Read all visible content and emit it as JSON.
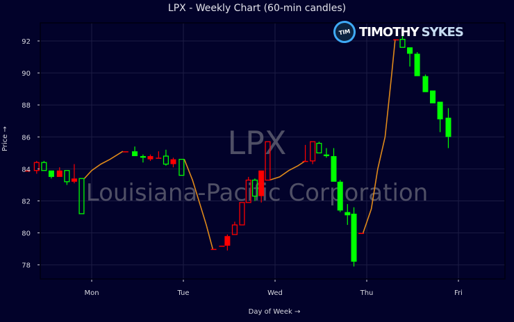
{
  "header": {
    "title": "LPX - Weekly Chart (60-min candles)"
  },
  "axes": {
    "ylabel": "Price →",
    "xlabel": "Day of Week →"
  },
  "watermark": {
    "ticker": "LPX",
    "company": "Louisiana-Pacific Corporation"
  },
  "logo": {
    "badge": "TIM",
    "name_primary": "TIMOTHY",
    "name_secondary": "SYKES"
  },
  "colors": {
    "background": "#02022a",
    "up": "#00ff00",
    "down": "#ff0000",
    "line": "#e08a1a",
    "grid": "#1c1c44"
  },
  "chart_data": {
    "type": "candlestick",
    "title": "LPX - Weekly Chart (60-min candles)",
    "xlabel": "Day of Week →",
    "ylabel": "Price →",
    "x_ticks": [
      "Mon",
      "Tue",
      "Wed",
      "Thu",
      "Fri"
    ],
    "y_ticks": [
      78,
      80,
      82,
      84,
      86,
      88,
      90,
      92
    ],
    "ylim": [
      77.3,
      93.1
    ],
    "grid": true,
    "legend": null,
    "candles": [
      {
        "x": 0.3,
        "open": 83.9,
        "high": 83.9,
        "low": 83.9,
        "close": 83.9,
        "color": "down",
        "filled": true
      },
      {
        "x": 0.4,
        "open": 84.4,
        "high": 84.5,
        "low": 83.7,
        "close": 83.9,
        "color": "down",
        "filled": false
      },
      {
        "x": 0.48,
        "open": 83.9,
        "high": 84.5,
        "low": 83.9,
        "close": 84.4,
        "color": "up",
        "filled": false
      },
      {
        "x": 0.56,
        "open": 83.9,
        "high": 83.9,
        "low": 83.4,
        "close": 83.5,
        "color": "up",
        "filled": true
      },
      {
        "x": 0.65,
        "open": 83.9,
        "high": 84.1,
        "low": 83.5,
        "close": 83.5,
        "color": "down",
        "filled": true
      },
      {
        "x": 0.73,
        "open": 83.2,
        "high": 83.9,
        "low": 83.0,
        "close": 83.9,
        "color": "up",
        "filled": false
      },
      {
        "x": 0.81,
        "open": 83.4,
        "high": 84.3,
        "low": 83.1,
        "close": 83.2,
        "color": "down",
        "filled": true
      },
      {
        "x": 0.89,
        "open": 81.2,
        "high": 83.4,
        "low": 81.2,
        "close": 83.4,
        "color": "up",
        "filled": false
      },
      {
        "x": 1.37,
        "open": 85.1,
        "high": 85.1,
        "low": 85.1,
        "close": 85.1,
        "color": "down",
        "filled": true
      },
      {
        "x": 1.47,
        "open": 85.1,
        "high": 85.4,
        "low": 84.8,
        "close": 84.8,
        "color": "up",
        "filled": true
      },
      {
        "x": 1.56,
        "open": 84.8,
        "high": 84.9,
        "low": 84.4,
        "close": 84.7,
        "color": "up",
        "filled": true
      },
      {
        "x": 1.64,
        "open": 84.8,
        "high": 84.9,
        "low": 84.5,
        "close": 84.6,
        "color": "down",
        "filled": true
      },
      {
        "x": 1.73,
        "open": 84.7,
        "high": 85.1,
        "low": 84.7,
        "close": 84.7,
        "color": "down",
        "filled": true
      },
      {
        "x": 1.81,
        "open": 84.3,
        "high": 85.2,
        "low": 84.2,
        "close": 84.8,
        "color": "up",
        "filled": false
      },
      {
        "x": 1.89,
        "open": 84.6,
        "high": 84.7,
        "low": 84.1,
        "close": 84.3,
        "color": "down",
        "filled": true
      },
      {
        "x": 1.98,
        "open": 83.6,
        "high": 84.6,
        "low": 83.6,
        "close": 84.6,
        "color": "up",
        "filled": false
      },
      {
        "x": 2.33,
        "open": 79.0,
        "high": 79.0,
        "low": 79.0,
        "close": 79.0,
        "color": "down",
        "filled": true
      },
      {
        "x": 2.42,
        "open": 79.2,
        "high": 79.2,
        "low": 79.2,
        "close": 79.2,
        "color": "down",
        "filled": true
      },
      {
        "x": 2.48,
        "open": 79.8,
        "high": 79.9,
        "low": 78.9,
        "close": 79.2,
        "color": "down",
        "filled": true
      },
      {
        "x": 2.56,
        "open": 80.5,
        "high": 80.7,
        "low": 79.9,
        "close": 79.9,
        "color": "down",
        "filled": false
      },
      {
        "x": 2.64,
        "open": 81.9,
        "high": 81.9,
        "low": 80.5,
        "close": 80.5,
        "color": "down",
        "filled": false
      },
      {
        "x": 2.71,
        "open": 83.3,
        "high": 83.5,
        "low": 81.9,
        "close": 81.9,
        "color": "down",
        "filled": false
      },
      {
        "x": 2.78,
        "open": 82.3,
        "high": 83.4,
        "low": 82.0,
        "close": 83.3,
        "color": "up",
        "filled": false
      },
      {
        "x": 2.85,
        "open": 83.9,
        "high": 83.9,
        "low": 81.9,
        "close": 82.3,
        "color": "down",
        "filled": true
      },
      {
        "x": 2.92,
        "open": 85.7,
        "high": 85.7,
        "low": 83.3,
        "close": 83.3,
        "color": "down",
        "filled": false
      },
      {
        "x": 3.33,
        "open": 84.5,
        "high": 85.5,
        "low": 84.5,
        "close": 84.5,
        "color": "down",
        "filled": true
      },
      {
        "x": 3.41,
        "open": 85.7,
        "high": 85.7,
        "low": 84.3,
        "close": 84.5,
        "color": "down",
        "filled": false
      },
      {
        "x": 3.48,
        "open": 85.0,
        "high": 85.7,
        "low": 85.0,
        "close": 85.6,
        "color": "up",
        "filled": false
      },
      {
        "x": 3.56,
        "open": 84.8,
        "high": 85.3,
        "low": 84.7,
        "close": 84.9,
        "color": "up",
        "filled": true
      },
      {
        "x": 3.64,
        "open": 84.8,
        "high": 85.3,
        "low": 83.2,
        "close": 83.2,
        "color": "up",
        "filled": true
      },
      {
        "x": 3.71,
        "open": 83.2,
        "high": 83.3,
        "low": 81.3,
        "close": 81.4,
        "color": "up",
        "filled": true
      },
      {
        "x": 3.79,
        "open": 81.3,
        "high": 81.8,
        "low": 80.5,
        "close": 81.1,
        "color": "up",
        "filled": true
      },
      {
        "x": 3.86,
        "open": 81.2,
        "high": 81.6,
        "low": 77.9,
        "close": 78.2,
        "color": "up",
        "filled": true
      },
      {
        "x": 3.94,
        "open": 80.0,
        "high": 80.0,
        "low": 80.0,
        "close": 80.0,
        "color": "down",
        "filled": true
      },
      {
        "x": 4.32,
        "open": 92.1,
        "high": 92.1,
        "low": 92.1,
        "close": 92.1,
        "color": "down",
        "filled": true
      },
      {
        "x": 4.39,
        "open": 91.6,
        "high": 92.3,
        "low": 91.6,
        "close": 92.1,
        "color": "up",
        "filled": false
      },
      {
        "x": 4.47,
        "open": 91.6,
        "high": 91.6,
        "low": 90.4,
        "close": 91.2,
        "color": "up",
        "filled": true
      },
      {
        "x": 4.55,
        "open": 91.2,
        "high": 91.3,
        "low": 89.8,
        "close": 89.8,
        "color": "up",
        "filled": true
      },
      {
        "x": 4.64,
        "open": 89.8,
        "high": 89.9,
        "low": 88.8,
        "close": 88.8,
        "color": "up",
        "filled": true
      },
      {
        "x": 4.72,
        "open": 88.9,
        "high": 88.9,
        "low": 88.1,
        "close": 88.1,
        "color": "up",
        "filled": true
      },
      {
        "x": 4.8,
        "open": 88.2,
        "high": 88.2,
        "low": 86.3,
        "close": 87.1,
        "color": "up",
        "filled": true
      },
      {
        "x": 4.89,
        "open": 87.2,
        "high": 87.8,
        "low": 85.3,
        "close": 86.0,
        "color": "up",
        "filled": true
      }
    ],
    "gap_lines": [
      {
        "points": [
          [
            0.92,
            83.4
          ],
          [
            1.0,
            83.9
          ],
          [
            1.1,
            84.3
          ],
          [
            1.2,
            84.6
          ],
          [
            1.34,
            85.1
          ]
        ]
      },
      {
        "points": [
          [
            2.01,
            84.6
          ],
          [
            2.1,
            83.3
          ],
          [
            2.25,
            80.5
          ],
          [
            2.32,
            79.0
          ]
        ]
      },
      {
        "points": [
          [
            2.94,
            83.3
          ],
          [
            3.05,
            83.5
          ],
          [
            3.15,
            83.9
          ],
          [
            3.25,
            84.2
          ],
          [
            3.33,
            84.5
          ]
        ]
      },
      {
        "points": [
          [
            3.96,
            80.0
          ],
          [
            4.05,
            81.5
          ],
          [
            4.12,
            84.0
          ],
          [
            4.2,
            86.0
          ],
          [
            4.27,
            89.8
          ],
          [
            4.31,
            92.1
          ]
        ]
      }
    ]
  }
}
